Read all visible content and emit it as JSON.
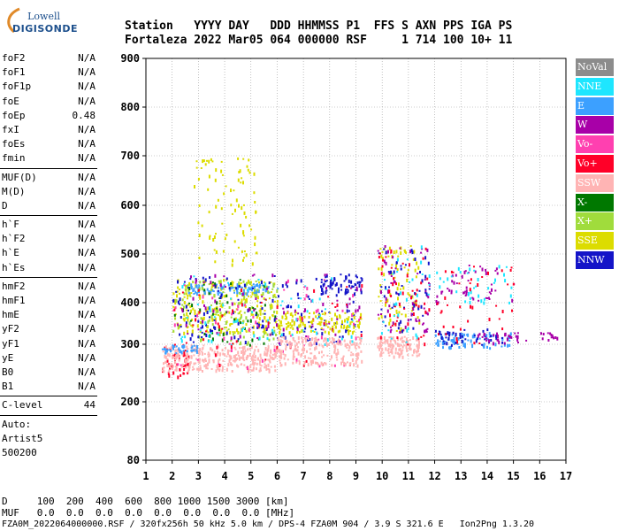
{
  "logo": {
    "brand_top": "Lowell",
    "brand_bottom": "DIGISONDE"
  },
  "header": {
    "row1": "Station   YYYY DAY   DDD HHMMSS P1  FFS S AXN PPS IGA PS",
    "row2": "Fortaleza 2022 Mar05 064 000000 RSF     1 714 100 10+ 11"
  },
  "params_group1": [
    {
      "label": "foF2",
      "value": "N/A"
    },
    {
      "label": "foF1",
      "value": "N/A"
    },
    {
      "label": "foF1p",
      "value": "N/A"
    },
    {
      "label": "foE",
      "value": "N/A"
    },
    {
      "label": "foEp",
      "value": "0.48"
    },
    {
      "label": "fxI",
      "value": "N/A"
    },
    {
      "label": "foEs",
      "value": "N/A"
    },
    {
      "label": "fmin",
      "value": "N/A"
    }
  ],
  "params_group2": [
    {
      "label": "MUF(D)",
      "value": "N/A"
    },
    {
      "label": "M(D)",
      "value": "N/A"
    },
    {
      "label": "D",
      "value": "N/A"
    }
  ],
  "params_group3": [
    {
      "label": "h`F",
      "value": "N/A"
    },
    {
      "label": "h`F2",
      "value": "N/A"
    },
    {
      "label": "h`E",
      "value": "N/A"
    },
    {
      "label": "h`Es",
      "value": "N/A"
    }
  ],
  "params_group4": [
    {
      "label": "hmF2",
      "value": "N/A"
    },
    {
      "label": "hmF1",
      "value": "N/A"
    },
    {
      "label": "hmE",
      "value": "N/A"
    },
    {
      "label": "yF2",
      "value": "N/A"
    },
    {
      "label": "yF1",
      "value": "N/A"
    },
    {
      "label": "yE",
      "value": "N/A"
    },
    {
      "label": "B0",
      "value": "N/A"
    },
    {
      "label": "B1",
      "value": "N/A"
    }
  ],
  "clevel": {
    "label": "C-level",
    "value": "44"
  },
  "auto": {
    "line1": "Auto:",
    "line2": "Artist5",
    "line3": "500200"
  },
  "legend": [
    {
      "label": "NoVal",
      "color": "#8c8c8c"
    },
    {
      "label": "NNE",
      "color": "#1ee6ff"
    },
    {
      "label": "E",
      "color": "#3ca0ff"
    },
    {
      "label": "W",
      "color": "#a800a8"
    },
    {
      "label": "Vo-",
      "color": "#ff40b0"
    },
    {
      "label": "Vo+",
      "color": "#ff0028"
    },
    {
      "label": "SSW",
      "color": "#ffb4b4"
    },
    {
      "label": "X-",
      "color": "#007800"
    },
    {
      "label": "X+",
      "color": "#a0dc3c"
    },
    {
      "label": "SSE",
      "color": "#dcdc00"
    },
    {
      "label": "NNW",
      "color": "#1414c8"
    }
  ],
  "footer": {
    "line1": "D     100  200  400  600  800 1000 1500 3000 [km]",
    "line2": "MUF   0.0  0.0  0.0  0.0  0.0  0.0  0.0  0.0 [MHz]",
    "line3": "FZA0M_2022064000000.RSF / 320fx256h 50 kHz 5.0 km / DPS-4 FZA0M 904 / 3.9 S 321.6 E   Ion2Png 1.3.20"
  },
  "chart_data": {
    "type": "scatter",
    "x_ticks": [
      "1",
      "2",
      "3",
      "4",
      "5",
      "6",
      "7",
      "8",
      "9",
      "10",
      "11",
      "12",
      "13",
      "14",
      "15",
      "16",
      "17"
    ],
    "y_ticks": [
      "80",
      "200",
      "300",
      "400",
      "500",
      "600",
      "700",
      "800",
      "900"
    ],
    "xlim": [
      1,
      17
    ],
    "ylim_log_range_km": [
      80,
      900
    ],
    "clusters": [
      {
        "x_range": [
          1.6,
          2.6
        ],
        "y_range": [
          240,
          300
        ],
        "color": "#ff0028",
        "density": 45
      },
      {
        "x_range": [
          1.6,
          6.0
        ],
        "y_range": [
          255,
          300
        ],
        "color": "#ffb4b4",
        "density": 300
      },
      {
        "x_range": [
          1.6,
          3.0
        ],
        "y_range": [
          285,
          300
        ],
        "color": "#3ca0ff",
        "density": 40
      },
      {
        "x_range": [
          2.0,
          6.0
        ],
        "y_range": [
          330,
          450
        ],
        "color": "#dcdc00",
        "density": 260
      },
      {
        "x_range": [
          2.6,
          6.0
        ],
        "y_range": [
          420,
          440
        ],
        "color": "#3ca0ff",
        "density": 90
      },
      {
        "x_range": [
          2.8,
          5.2
        ],
        "y_range": [
          480,
          700
        ],
        "color": "#dcdc00",
        "density": 90
      },
      {
        "x_range": [
          2.0,
          6.0
        ],
        "y_range": [
          300,
          450
        ],
        "color": "#a0dc3c",
        "density": 120
      },
      {
        "x_range": [
          2.0,
          6.0
        ],
        "y_range": [
          300,
          450
        ],
        "color": "#007800",
        "density": 50
      },
      {
        "x_range": [
          2.0,
          9.2
        ],
        "y_range": [
          300,
          460
        ],
        "color": "#1414c8",
        "density": 140
      },
      {
        "x_range": [
          2.0,
          9.2
        ],
        "y_range": [
          300,
          460
        ],
        "color": "#a800a8",
        "density": 90
      },
      {
        "x_range": [
          2.0,
          9.2
        ],
        "y_range": [
          300,
          460
        ],
        "color": "#1ee6ff",
        "density": 70
      },
      {
        "x_range": [
          2.0,
          9.2
        ],
        "y_range": [
          260,
          450
        ],
        "color": "#ff40b0",
        "density": 60
      },
      {
        "x_range": [
          2.0,
          9.2
        ],
        "y_range": [
          260,
          450
        ],
        "color": "#ff0028",
        "density": 50
      },
      {
        "x_range": [
          6.0,
          9.2
        ],
        "y_range": [
          265,
          320
        ],
        "color": "#ffb4b4",
        "density": 200
      },
      {
        "x_range": [
          6.0,
          9.2
        ],
        "y_range": [
          330,
          380
        ],
        "color": "#dcdc00",
        "density": 120
      },
      {
        "x_range": [
          7.6,
          9.2
        ],
        "y_range": [
          420,
          460
        ],
        "color": "#1414c8",
        "density": 60
      },
      {
        "x_range": [
          9.8,
          11.4
        ],
        "y_range": [
          280,
          320
        ],
        "color": "#ffb4b4",
        "density": 120
      },
      {
        "x_range": [
          9.8,
          11.4
        ],
        "y_range": [
          330,
          520
        ],
        "color": "#dcdc00",
        "density": 80
      },
      {
        "x_range": [
          9.8,
          11.8
        ],
        "y_range": [
          330,
          520
        ],
        "color": "#a800a8",
        "density": 60
      },
      {
        "x_range": [
          9.8,
          11.8
        ],
        "y_range": [
          330,
          520
        ],
        "color": "#1414c8",
        "density": 50
      },
      {
        "x_range": [
          9.8,
          11.8
        ],
        "y_range": [
          300,
          520
        ],
        "color": "#ff0028",
        "density": 50
      },
      {
        "x_range": [
          9.8,
          11.8
        ],
        "y_range": [
          300,
          520
        ],
        "color": "#1ee6ff",
        "density": 30
      },
      {
        "x_range": [
          12.0,
          15.0
        ],
        "y_range": [
          295,
          330
        ],
        "color": "#3ca0ff",
        "density": 80
      },
      {
        "x_range": [
          12.0,
          15.0
        ],
        "y_range": [
          400,
          480
        ],
        "color": "#a800a8",
        "density": 50
      },
      {
        "x_range": [
          12.0,
          15.0
        ],
        "y_range": [
          400,
          480
        ],
        "color": "#1ee6ff",
        "density": 35
      },
      {
        "x_range": [
          12.0,
          15.0
        ],
        "y_range": [
          300,
          480
        ],
        "color": "#ff0028",
        "density": 40
      },
      {
        "x_range": [
          12.0,
          14.6
        ],
        "y_range": [
          300,
          340
        ],
        "color": "#1414c8",
        "density": 40
      },
      {
        "x_range": [
          13.5,
          15.5
        ],
        "y_range": [
          305,
          330
        ],
        "color": "#a800a8",
        "density": 30
      },
      {
        "x_range": [
          16.0,
          16.8
        ],
        "y_range": [
          310,
          330
        ],
        "color": "#a800a8",
        "density": 12
      }
    ]
  }
}
